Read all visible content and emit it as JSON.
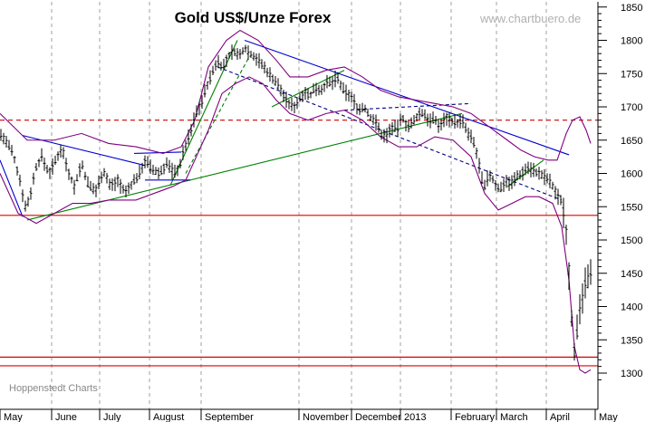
{
  "chart_data": {
    "type": "bar",
    "subtype": "ohlc",
    "title": "Gold US$/Unze Forex",
    "watermark": "www.chartbuero.de",
    "source": "Hoppenstedt Charts",
    "xlabel": "",
    "ylabel": "",
    "ylim": [
      1280,
      1860
    ],
    "y_ticks": [
      1300,
      1350,
      1400,
      1450,
      1500,
      1550,
      1600,
      1650,
      1700,
      1750,
      1800,
      1850
    ],
    "x_month_labels": [
      "May",
      "June",
      "July",
      "August",
      "September",
      "November",
      "December",
      "2013",
      "February",
      "March",
      "April",
      "May"
    ],
    "grid": {
      "vertical_dashed": true,
      "horizontal": false
    },
    "colors": {
      "price": "#000000",
      "bollinger": "#800080",
      "trend_up": "#008000",
      "trend_down": "#000080",
      "channel": "#0000cc",
      "support": "#dd0000",
      "resistance_dashed": "#cc0000",
      "grid": "#a0a0a0"
    },
    "price_path": [
      [
        0,
        1660
      ],
      [
        8,
        1645
      ],
      [
        14,
        1630
      ],
      [
        22,
        1590
      ],
      [
        28,
        1550
      ],
      [
        32,
        1560
      ],
      [
        40,
        1610
      ],
      [
        46,
        1625
      ],
      [
        54,
        1600
      ],
      [
        62,
        1620
      ],
      [
        68,
        1640
      ],
      [
        75,
        1605
      ],
      [
        82,
        1580
      ],
      [
        90,
        1615
      ],
      [
        98,
        1580
      ],
      [
        106,
        1575
      ],
      [
        114,
        1605
      ],
      [
        122,
        1580
      ],
      [
        130,
        1590
      ],
      [
        138,
        1570
      ],
      [
        146,
        1585
      ],
      [
        154,
        1600
      ],
      [
        160,
        1620
      ],
      [
        168,
        1605
      ],
      [
        176,
        1600
      ],
      [
        184,
        1615
      ],
      [
        192,
        1600
      ],
      [
        198,
        1610
      ],
      [
        204,
        1640
      ],
      [
        210,
        1660
      ],
      [
        216,
        1690
      ],
      [
        222,
        1705
      ],
      [
        228,
        1730
      ],
      [
        234,
        1750
      ],
      [
        240,
        1770
      ],
      [
        246,
        1760
      ],
      [
        252,
        1775
      ],
      [
        258,
        1785
      ],
      [
        264,
        1775
      ],
      [
        270,
        1790
      ],
      [
        276,
        1780
      ],
      [
        282,
        1775
      ],
      [
        288,
        1765
      ],
      [
        294,
        1755
      ],
      [
        300,
        1745
      ],
      [
        306,
        1735
      ],
      [
        312,
        1720
      ],
      [
        318,
        1705
      ],
      [
        324,
        1700
      ],
      [
        330,
        1710
      ],
      [
        336,
        1725
      ],
      [
        342,
        1715
      ],
      [
        348,
        1730
      ],
      [
        354,
        1725
      ],
      [
        360,
        1735
      ],
      [
        366,
        1735
      ],
      [
        372,
        1745
      ],
      [
        378,
        1725
      ],
      [
        384,
        1720
      ],
      [
        390,
        1710
      ],
      [
        396,
        1695
      ],
      [
        402,
        1700
      ],
      [
        408,
        1685
      ],
      [
        414,
        1680
      ],
      [
        420,
        1660
      ],
      [
        426,
        1655
      ],
      [
        432,
        1670
      ],
      [
        438,
        1665
      ],
      [
        444,
        1685
      ],
      [
        450,
        1670
      ],
      [
        456,
        1675
      ],
      [
        462,
        1690
      ],
      [
        468,
        1690
      ],
      [
        474,
        1680
      ],
      [
        480,
        1680
      ],
      [
        486,
        1670
      ],
      [
        492,
        1685
      ],
      [
        498,
        1680
      ],
      [
        504,
        1675
      ],
      [
        510,
        1680
      ],
      [
        516,
        1660
      ],
      [
        522,
        1650
      ],
      [
        528,
        1620
      ],
      [
        534,
        1575
      ],
      [
        540,
        1600
      ],
      [
        546,
        1585
      ],
      [
        552,
        1575
      ],
      [
        558,
        1590
      ],
      [
        564,
        1585
      ],
      [
        570,
        1595
      ],
      [
        576,
        1600
      ],
      [
        582,
        1610
      ],
      [
        588,
        1605
      ],
      [
        594,
        1600
      ],
      [
        600,
        1595
      ],
      [
        606,
        1590
      ],
      [
        612,
        1575
      ],
      [
        616,
        1565
      ],
      [
        620,
        1560
      ],
      [
        624,
        1530
      ],
      [
        627,
        1480
      ],
      [
        630,
        1400
      ],
      [
        634,
        1335
      ],
      [
        638,
        1370
      ],
      [
        642,
        1410
      ],
      [
        646,
        1430
      ],
      [
        650,
        1440
      ],
      [
        653,
        1465
      ]
    ],
    "bollinger_upper": [
      [
        0,
        1690
      ],
      [
        30,
        1650
      ],
      [
        60,
        1650
      ],
      [
        90,
        1660
      ],
      [
        120,
        1645
      ],
      [
        150,
        1640
      ],
      [
        180,
        1630
      ],
      [
        200,
        1640
      ],
      [
        215,
        1680
      ],
      [
        230,
        1760
      ],
      [
        250,
        1800
      ],
      [
        265,
        1815
      ],
      [
        285,
        1800
      ],
      [
        305,
        1770
      ],
      [
        320,
        1745
      ],
      [
        340,
        1745
      ],
      [
        360,
        1755
      ],
      [
        380,
        1760
      ],
      [
        400,
        1745
      ],
      [
        420,
        1725
      ],
      [
        440,
        1715
      ],
      [
        460,
        1710
      ],
      [
        480,
        1705
      ],
      [
        500,
        1700
      ],
      [
        520,
        1690
      ],
      [
        540,
        1670
      ],
      [
        560,
        1650
      ],
      [
        575,
        1635
      ],
      [
        590,
        1625
      ],
      [
        605,
        1620
      ],
      [
        615,
        1620
      ],
      [
        625,
        1660
      ],
      [
        632,
        1680
      ],
      [
        640,
        1685
      ],
      [
        647,
        1665
      ],
      [
        652,
        1645
      ]
    ],
    "bollinger_lower": [
      [
        0,
        1600
      ],
      [
        20,
        1540
      ],
      [
        40,
        1525
      ],
      [
        60,
        1540
      ],
      [
        80,
        1555
      ],
      [
        100,
        1555
      ],
      [
        120,
        1560
      ],
      [
        150,
        1560
      ],
      [
        170,
        1570
      ],
      [
        190,
        1580
      ],
      [
        205,
        1590
      ],
      [
        215,
        1620
      ],
      [
        230,
        1665
      ],
      [
        245,
        1720
      ],
      [
        260,
        1735
      ],
      [
        275,
        1745
      ],
      [
        290,
        1735
      ],
      [
        305,
        1710
      ],
      [
        320,
        1690
      ],
      [
        340,
        1680
      ],
      [
        360,
        1690
      ],
      [
        380,
        1695
      ],
      [
        400,
        1680
      ],
      [
        420,
        1655
      ],
      [
        440,
        1640
      ],
      [
        460,
        1640
      ],
      [
        480,
        1655
      ],
      [
        500,
        1650
      ],
      [
        520,
        1625
      ],
      [
        535,
        1570
      ],
      [
        550,
        1545
      ],
      [
        565,
        1555
      ],
      [
        580,
        1565
      ],
      [
        595,
        1565
      ],
      [
        610,
        1555
      ],
      [
        620,
        1520
      ],
      [
        628,
        1440
      ],
      [
        634,
        1340
      ],
      [
        640,
        1305
      ],
      [
        646,
        1300
      ],
      [
        652,
        1305
      ]
    ],
    "lines": [
      {
        "kind": "trend_up",
        "from": [
          30,
          1530
        ],
        "to": [
          510,
          1690
        ]
      },
      {
        "kind": "trend_up",
        "from": [
          188,
          1582
        ],
        "to": [
          262,
          1800
        ]
      },
      {
        "kind": "trend_up",
        "from": [
          300,
          1700
        ],
        "to": [
          380,
          1755
        ]
      },
      {
        "kind": "trend_up",
        "from": [
          560,
          1580
        ],
        "to": [
          600,
          1620
        ]
      },
      {
        "kind": "channel",
        "from": [
          270,
          1800
        ],
        "to": [
          628,
          1628
        ]
      },
      {
        "kind": "channel",
        "from": [
          25,
          1657
        ],
        "to": [
          160,
          1612
        ]
      },
      {
        "kind": "channel",
        "from": [
          0,
          1620
        ],
        "to": [
          25,
          1535
        ]
      },
      {
        "kind": "channel",
        "from": [
          148,
          1630
        ],
        "to": [
          200,
          1632
        ]
      },
      {
        "kind": "channel",
        "from": [
          160,
          1590
        ],
        "to": [
          210,
          1590
        ]
      },
      {
        "kind": "trend_down_dashed",
        "from": [
          240,
          1760
        ],
        "to": [
          620,
          1560
        ]
      },
      {
        "kind": "trend_up_dashed",
        "from": [
          205,
          1600
        ],
        "to": [
          275,
          1775
        ]
      },
      {
        "kind": "trend_down_dashed",
        "from": [
          380,
          1695
        ],
        "to": [
          520,
          1705
        ]
      }
    ],
    "horizontal_levels": [
      {
        "kind": "resistance_dashed",
        "value": 1680
      },
      {
        "kind": "support",
        "value": 1537
      },
      {
        "kind": "support",
        "value": 1324
      },
      {
        "kind": "support",
        "value": 1311
      }
    ]
  }
}
